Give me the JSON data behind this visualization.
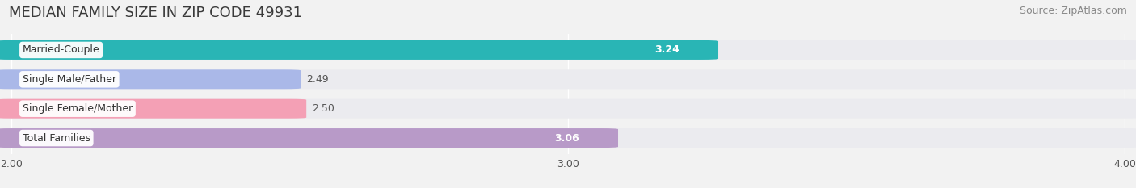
{
  "title": "MEDIAN FAMILY SIZE IN ZIP CODE 49931",
  "source": "Source: ZipAtlas.com",
  "categories": [
    "Married-Couple",
    "Single Male/Father",
    "Single Female/Mother",
    "Total Families"
  ],
  "values": [
    3.24,
    2.49,
    2.5,
    3.06
  ],
  "bar_colors": [
    "#29b5b5",
    "#aab8e8",
    "#f4a0b5",
    "#b89ac8"
  ],
  "xmin": 2.0,
  "xmax": 4.0,
  "xticks": [
    2.0,
    3.0,
    4.0
  ],
  "bar_height": 0.6,
  "background_color": "#f2f2f2",
  "bar_bg_color": "#ebebef",
  "title_fontsize": 13,
  "label_fontsize": 9,
  "value_fontsize": 9,
  "source_fontsize": 9
}
